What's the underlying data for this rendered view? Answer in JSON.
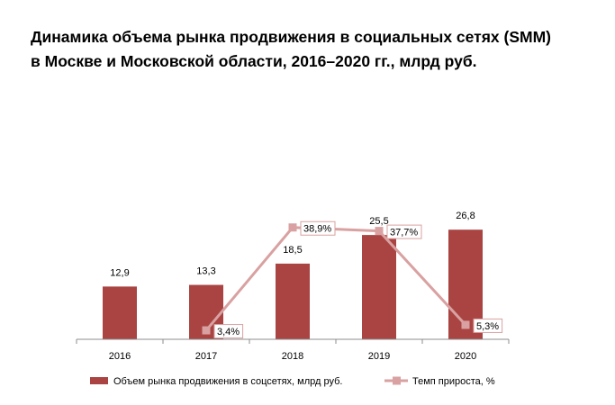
{
  "title_line1": "Динамика объема рынка продвижения в социальных сетях (SMM)",
  "title_line2": "в Москве и Московской области, 2016–2020 гг., млрд руб.",
  "chart_data": {
    "type": "bar",
    "categories": [
      "2016",
      "2017",
      "2018",
      "2019",
      "2020"
    ],
    "series": [
      {
        "name": "Объем рынка продвижения  в соцсетях, млрд руб.",
        "type": "bar",
        "values": [
          12.9,
          13.3,
          18.5,
          25.5,
          26.8
        ],
        "value_labels": [
          "12,9",
          "13,3",
          "18,5",
          "25,5",
          "26,8"
        ],
        "color": "#a94442"
      },
      {
        "name": "Темп прироста, %",
        "type": "line",
        "values": [
          null,
          3.4,
          38.9,
          37.7,
          5.3
        ],
        "value_labels": [
          "",
          "3,4%",
          "38,9%",
          "37,7%",
          "5,3%"
        ],
        "color": "#d9a1a1"
      }
    ],
    "ylim_bars": [
      0,
      30
    ],
    "ylim_line": [
      0,
      50
    ],
    "grid": false,
    "legend_position": "bottom"
  }
}
